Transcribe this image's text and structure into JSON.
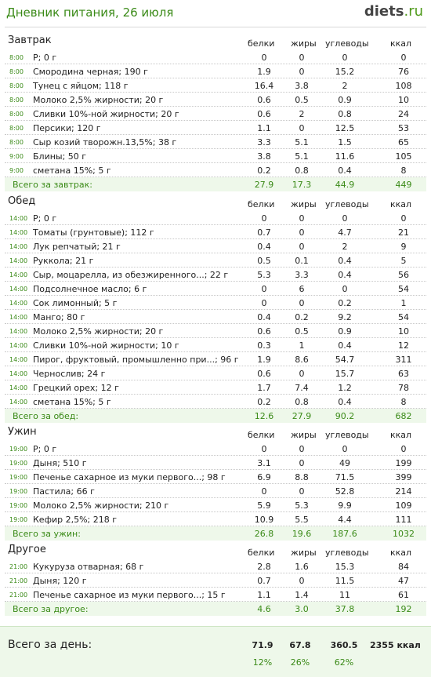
{
  "header": {
    "title": "Дневник питания, 26 июля",
    "logo_main": "diets",
    "logo_tld": ".ru"
  },
  "columns": {
    "protein": "белки",
    "fat": "жиры",
    "carbs": "углеводы",
    "kcal": "ккал"
  },
  "meals": [
    {
      "title": "Завтрак",
      "rows": [
        {
          "time": "8:00",
          "name": "P; 0 г",
          "p": "0",
          "f": "0",
          "c": "0",
          "k": "0"
        },
        {
          "time": "8:00",
          "name": "Смородина черная; 190 г",
          "p": "1.9",
          "f": "0",
          "c": "15.2",
          "k": "76"
        },
        {
          "time": "8:00",
          "name": "Тунец с яйцом; 118 г",
          "p": "16.4",
          "f": "3.8",
          "c": "2",
          "k": "108"
        },
        {
          "time": "8:00",
          "name": "Молоко 2,5% жирности; 20 г",
          "p": "0.6",
          "f": "0.5",
          "c": "0.9",
          "k": "10"
        },
        {
          "time": "8:00",
          "name": "Сливки 10%-ной жирности; 20 г",
          "p": "0.6",
          "f": "2",
          "c": "0.8",
          "k": "24"
        },
        {
          "time": "8:00",
          "name": "Персики; 120 г",
          "p": "1.1",
          "f": "0",
          "c": "12.5",
          "k": "53"
        },
        {
          "time": "8:00",
          "name": "Сыр козий творожн.13,5%; 38 г",
          "p": "3.3",
          "f": "5.1",
          "c": "1.5",
          "k": "65"
        },
        {
          "time": "9:00",
          "name": "Блины; 50 г",
          "p": "3.8",
          "f": "5.1",
          "c": "11.6",
          "k": "105"
        },
        {
          "time": "9:00",
          "name": "сметана 15%; 5 г",
          "p": "0.2",
          "f": "0.8",
          "c": "0.4",
          "k": "8"
        }
      ],
      "total": {
        "label": "Всего за завтрак:",
        "p": "27.9",
        "f": "17.3",
        "c": "44.9",
        "k": "449"
      }
    },
    {
      "title": "Обед",
      "rows": [
        {
          "time": "14:00",
          "name": "P; 0 г",
          "p": "0",
          "f": "0",
          "c": "0",
          "k": "0"
        },
        {
          "time": "14:00",
          "name": "Томаты (грунтовые); 112 г",
          "p": "0.7",
          "f": "0",
          "c": "4.7",
          "k": "21"
        },
        {
          "time": "14:00",
          "name": "Лук репчатый; 21 г",
          "p": "0.4",
          "f": "0",
          "c": "2",
          "k": "9"
        },
        {
          "time": "14:00",
          "name": "Руккола; 21 г",
          "p": "0.5",
          "f": "0.1",
          "c": "0.4",
          "k": "5"
        },
        {
          "time": "14:00",
          "name": "Сыр, моцарелла, из обезжиренного...; 22 г",
          "p": "5.3",
          "f": "3.3",
          "c": "0.4",
          "k": "56"
        },
        {
          "time": "14:00",
          "name": "Подсолнечное масло; 6 г",
          "p": "0",
          "f": "6",
          "c": "0",
          "k": "54"
        },
        {
          "time": "14:00",
          "name": "Сок лимонный; 5 г",
          "p": "0",
          "f": "0",
          "c": "0.2",
          "k": "1"
        },
        {
          "time": "14:00",
          "name": "Манго; 80 г",
          "p": "0.4",
          "f": "0.2",
          "c": "9.2",
          "k": "54"
        },
        {
          "time": "14:00",
          "name": "Молоко 2,5% жирности; 20 г",
          "p": "0.6",
          "f": "0.5",
          "c": "0.9",
          "k": "10"
        },
        {
          "time": "14:00",
          "name": "Сливки 10%-ной жирности; 10 г",
          "p": "0.3",
          "f": "1",
          "c": "0.4",
          "k": "12"
        },
        {
          "time": "14:00",
          "name": "Пирог, фруктовый, промышленно при...; 96 г",
          "p": "1.9",
          "f": "8.6",
          "c": "54.7",
          "k": "311"
        },
        {
          "time": "14:00",
          "name": "Чернослив; 24 г",
          "p": "0.6",
          "f": "0",
          "c": "15.7",
          "k": "63"
        },
        {
          "time": "14:00",
          "name": "Грецкий орех; 12 г",
          "p": "1.7",
          "f": "7.4",
          "c": "1.2",
          "k": "78"
        },
        {
          "time": "14:00",
          "name": "сметана 15%; 5 г",
          "p": "0.2",
          "f": "0.8",
          "c": "0.4",
          "k": "8"
        }
      ],
      "total": {
        "label": "Всего за обед:",
        "p": "12.6",
        "f": "27.9",
        "c": "90.2",
        "k": "682"
      }
    },
    {
      "title": "Ужин",
      "rows": [
        {
          "time": "19:00",
          "name": "P; 0 г",
          "p": "0",
          "f": "0",
          "c": "0",
          "k": "0"
        },
        {
          "time": "19:00",
          "name": "Дыня; 510 г",
          "p": "3.1",
          "f": "0",
          "c": "49",
          "k": "199"
        },
        {
          "time": "19:00",
          "name": "Печенье сахарное из муки первого...; 98 г",
          "p": "6.9",
          "f": "8.8",
          "c": "71.5",
          "k": "399"
        },
        {
          "time": "19:00",
          "name": "Пастила; 66 г",
          "p": "0",
          "f": "0",
          "c": "52.8",
          "k": "214"
        },
        {
          "time": "19:00",
          "name": "Молоко 2,5% жирности; 210 г",
          "p": "5.9",
          "f": "5.3",
          "c": "9.9",
          "k": "109"
        },
        {
          "time": "19:00",
          "name": "Кефир 2,5%; 218 г",
          "p": "10.9",
          "f": "5.5",
          "c": "4.4",
          "k": "111"
        }
      ],
      "total": {
        "label": "Всего за ужин:",
        "p": "26.8",
        "f": "19.6",
        "c": "187.6",
        "k": "1032"
      }
    },
    {
      "title": "Другое",
      "rows": [
        {
          "time": "21:00",
          "name": "Кукуруза отварная; 68 г",
          "p": "2.8",
          "f": "1.6",
          "c": "15.3",
          "k": "84"
        },
        {
          "time": "21:00",
          "name": "Дыня; 120 г",
          "p": "0.7",
          "f": "0",
          "c": "11.5",
          "k": "47"
        },
        {
          "time": "21:00",
          "name": "Печенье сахарное из муки первого...; 15 г",
          "p": "1.1",
          "f": "1.4",
          "c": "11",
          "k": "61"
        }
      ],
      "total": {
        "label": "Всего за другое:",
        "p": "4.6",
        "f": "3.0",
        "c": "37.8",
        "k": "192"
      }
    }
  ],
  "day": {
    "label": "Всего за день:",
    "p": "71.9",
    "f": "67.8",
    "c": "360.5",
    "kcal": "2355 ккал",
    "p_pct": "12%",
    "f_pct": "26%",
    "c_pct": "62%"
  }
}
